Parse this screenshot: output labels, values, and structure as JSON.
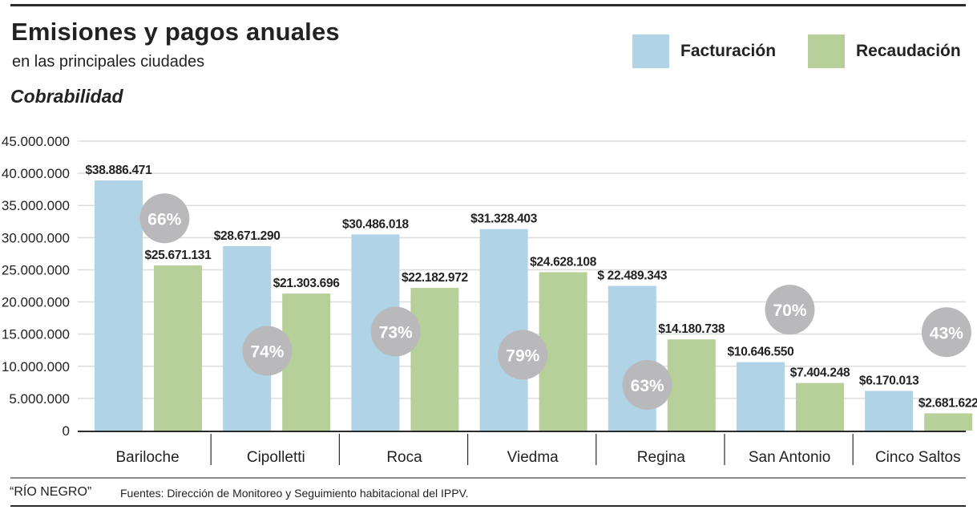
{
  "header": {
    "title": "Emisiones y pagos anuales",
    "subtitle": "en las principales ciudades",
    "section": "Cobrabilidad"
  },
  "footer": {
    "source_credit": "“RÍO NEGRO”",
    "source_note": "Fuentes: Dirección de Monitoreo y Seguimiento habitacional del IPPV."
  },
  "colors": {
    "facturacion": "#b0d3e6",
    "recaudacion": "#b7cf98",
    "badge": "#b9b9bb",
    "badge_text": "#ffffff",
    "grid": "#dcdcdc",
    "axis": "#2b2b2b"
  },
  "chart_data": {
    "type": "bar",
    "title": "Emisiones y pagos anuales",
    "subtitle": "en las principales ciudades",
    "xlabel": "",
    "ylabel": "",
    "ylim": [
      0,
      45000000
    ],
    "yticks": [
      0,
      5000000,
      10000000,
      15000000,
      20000000,
      25000000,
      30000000,
      35000000,
      40000000,
      45000000
    ],
    "ytick_labels": [
      "0",
      "5.000.000",
      "10.000.000",
      "15.000.000",
      "20.000.000",
      "25.000.000",
      "30.000.000",
      "35.000.000",
      "40.000.000",
      "45.000.000"
    ],
    "grid": true,
    "legend_position": "top-right",
    "categories": [
      "Bariloche",
      "Cipolletti",
      "Roca",
      "Viedma",
      "Regina",
      "San Antonio",
      "Cinco Saltos"
    ],
    "series": [
      {
        "name": "Facturación",
        "values": [
          38886471,
          28671290,
          30486018,
          31328403,
          22489343,
          10646550,
          6170013
        ],
        "labels": [
          "$38.886.471",
          "$28.671.290",
          "$30.486.018",
          "$31.328.403",
          "$ 22.489.343",
          "$10.646.550",
          "$6.170.013"
        ]
      },
      {
        "name": "Recaudación",
        "values": [
          25671131,
          21303696,
          22182972,
          24628108,
          14180738,
          7404248,
          2681622
        ],
        "labels": [
          "$25.671.131",
          "$21.303.696",
          "$22.182.972",
          "$24.628.108",
          "$14.180.738",
          "$7.404.248",
          "$2.681.622"
        ]
      }
    ],
    "annotations": {
      "name": "Cobrabilidad",
      "values_pct": [
        66,
        74,
        73,
        79,
        63,
        70,
        43
      ],
      "labels": [
        "66%",
        "74%",
        "73%",
        "79%",
        "63%",
        "70%",
        "43%"
      ]
    }
  }
}
